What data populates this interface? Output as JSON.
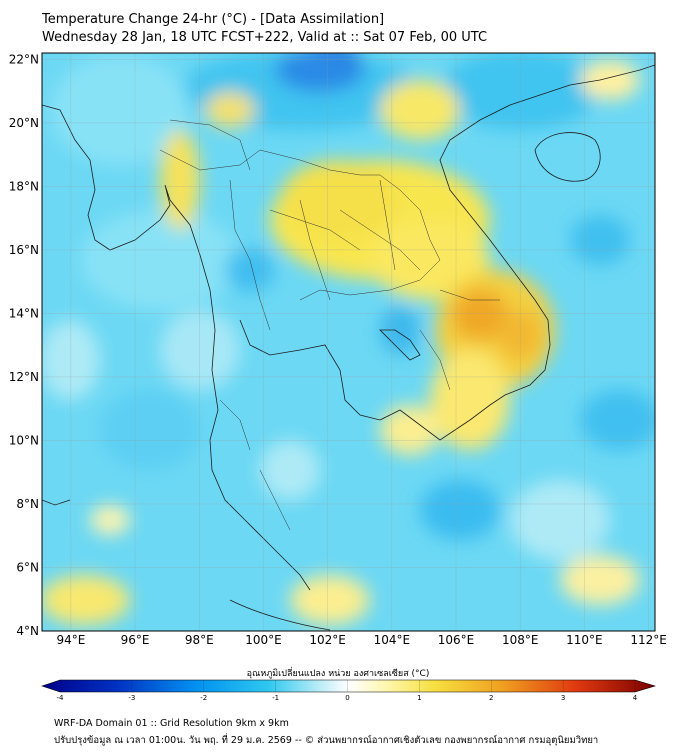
{
  "header": {
    "title": "Temperature Change 24-hr (°C) - [Data Assimilation]",
    "subtitle": "Wednesday 28 Jan, 18 UTC FCST+222, Valid at :: Sat 07 Feb, 00 UTC"
  },
  "map": {
    "lat_labels": [
      "22°N",
      "20°N",
      "18°N",
      "16°N",
      "14°N",
      "12°N",
      "10°N",
      "8°N",
      "6°N",
      "4°N"
    ],
    "lon_labels": [
      "94°E",
      "96°E",
      "98°E",
      "100°E",
      "102°E",
      "104°E",
      "106°E",
      "108°E",
      "110°E",
      "112°E"
    ],
    "lat_range": [
      4,
      22.2
    ],
    "lon_range": [
      93.1,
      112.2
    ],
    "grid": true,
    "field_palette": [
      "#00008b",
      "#0050d0",
      "#00a0ff",
      "#4fd0f5",
      "#aeeaf5",
      "#ffffff",
      "#fff6a8",
      "#f8e24a",
      "#f0a020",
      "#e04010",
      "#7a0000"
    ]
  },
  "colorbar": {
    "title": "อุณหภูมิเปลี่ยนแปลง หน่วย องศาเซลเซียส (°C)",
    "ticks": [
      "-4",
      "-3",
      "-2",
      "-1",
      "0",
      "1",
      "2",
      "3",
      "4"
    ],
    "range": [
      -4,
      4
    ]
  },
  "footer": {
    "line1": "WRF-DA Domain 01 :: Grid Resolution 9km x 9km",
    "line2": "ปรับปรุงข้อมูล ณ เวลา 01:00น. วัน พฤ. ที่ 29 ม.ค. 2569 -- © ส่วนพยากรณ์อากาศเชิงตัวเลข กองพยากรณ์อากาศ กรมอุตุนิยมวิทยา"
  }
}
